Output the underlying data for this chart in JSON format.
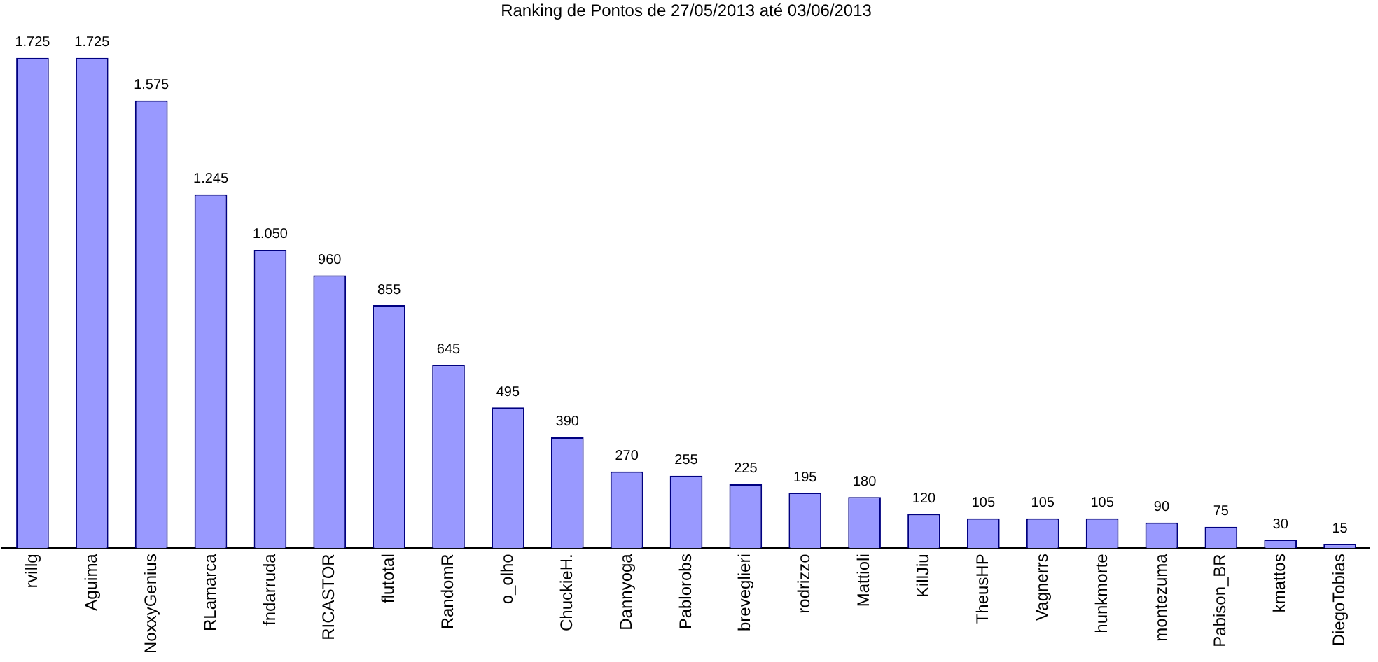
{
  "chart_data": {
    "type": "bar",
    "title": "Ranking de Pontos de 27/05/2013 até 03/06/2013",
    "categories": [
      "rvillg",
      "Aguima",
      "NoxxyGenius",
      "RLamarca",
      "fndarruda",
      "RICASTOR",
      "flutotal",
      "RandomR",
      "o_olho",
      "ChuckieH.",
      "Dannyoga",
      "Pablorobs",
      "breveglieri",
      "rodrizzo",
      "Mattioli",
      "KillJiu",
      "TheusHP",
      "Vagnerrs",
      "hunkmorte",
      "montezuma",
      "Pabison_BR",
      "kmattos",
      "DiegoTobias"
    ],
    "values": [
      1725,
      1725,
      1575,
      1245,
      1050,
      960,
      855,
      645,
      495,
      390,
      270,
      255,
      225,
      195,
      180,
      120,
      105,
      105,
      105,
      90,
      75,
      30,
      15
    ],
    "value_labels": [
      "1.725",
      "1.725",
      "1.575",
      "1.245",
      "1.050",
      "960",
      "855",
      "645",
      "495",
      "390",
      "270",
      "255",
      "225",
      "195",
      "180",
      "120",
      "105",
      "105",
      "105",
      "90",
      "75",
      "30",
      "15"
    ],
    "color": "#9999ff"
  }
}
